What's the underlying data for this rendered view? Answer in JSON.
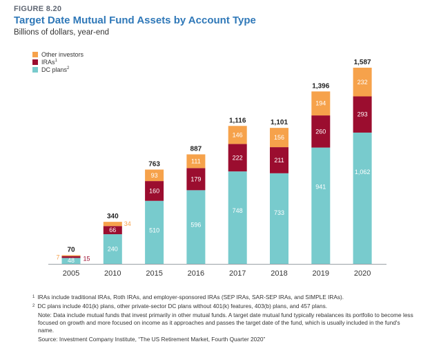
{
  "figure_label": "FIGURE 8.20",
  "title": "Target Date Mutual Fund Assets by Account Type",
  "subtitle": "Billions of dollars, year-end",
  "legend": [
    {
      "label": "Other investors",
      "sup": "",
      "color": "#f6a24b"
    },
    {
      "label": "IRAs",
      "sup": "1",
      "color": "#9b0d2f"
    },
    {
      "label": "DC plans",
      "sup": "2",
      "color": "#78cbcd"
    }
  ],
  "chart_data": {
    "type": "bar",
    "stacked": true,
    "title": "Target Date Mutual Fund Assets by Account Type",
    "ylabel": "Billions of dollars, year-end",
    "categories": [
      "2005",
      "2010",
      "2015",
      "2016",
      "2017",
      "2018",
      "2019",
      "2020"
    ],
    "series": [
      {
        "name": "DC plans",
        "color": "#78cbcd",
        "values": [
          48,
          240,
          510,
          596,
          748,
          733,
          941,
          1062
        ],
        "labels": [
          "48",
          "240",
          "510",
          "596",
          "748",
          "733",
          "941",
          "1,062"
        ]
      },
      {
        "name": "IRAs",
        "color": "#9b0d2f",
        "values": [
          15,
          66,
          160,
          179,
          222,
          211,
          260,
          293
        ],
        "labels": [
          "15",
          "66",
          "160",
          "179",
          "222",
          "211",
          "260",
          "293"
        ]
      },
      {
        "name": "Other investors",
        "color": "#f6a24b",
        "values": [
          7,
          34,
          93,
          111,
          146,
          156,
          194,
          232
        ],
        "labels": [
          "7",
          "34",
          "93",
          "111",
          "146",
          "156",
          "194",
          "232"
        ]
      }
    ],
    "totals": [
      70,
      340,
      763,
      887,
      1116,
      1101,
      1396,
      1587
    ],
    "total_labels": [
      "70",
      "340",
      "763",
      "887",
      "1,116",
      "1,101",
      "1,396",
      "1,587"
    ],
    "ylim": [
      0,
      1587
    ]
  },
  "footnotes": {
    "fn1_sym": "1",
    "fn1": "IRAs include traditional IRAs, Roth IRAs, and employer-sponsored IRAs (SEP IRAs, SAR-SEP IRAs, and SIMPLE IRAs).",
    "fn2_sym": "2",
    "fn2": "DC plans include 401(k) plans, other private-sector DC plans without 401(k) features, 403(b) plans, and 457 plans.",
    "note": "Note: Data include mutual funds that invest primarily in other mutual funds. A target date mutual fund typically rebalances its portfolio to become less focused on growth and more focused on income as it approaches and passes the target date of the fund, which is usually included in the fund's name.",
    "source": "Source: Investment Company Institute, “The US Retirement Market, Fourth Quarter 2020”"
  }
}
